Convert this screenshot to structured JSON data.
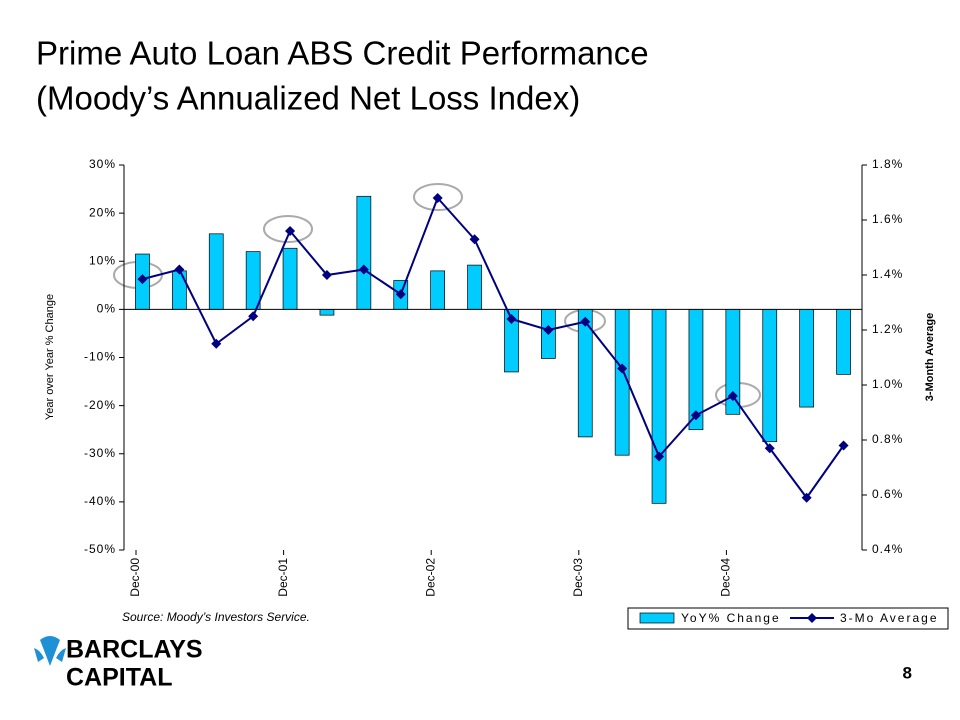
{
  "chart_data": {
    "type": "bar_line",
    "title": "Prime Auto Loan ABS Credit Performance",
    "subtitle": "(Moody’s Annualized Net Loss Index)",
    "y_label": "Year over Year % Change",
    "y2_label": "3-Month Average",
    "source": "Source: Moody’s Investors Service.",
    "categories": [
      "Dec-00",
      null,
      null,
      null,
      "Dec-01",
      null,
      null,
      null,
      "Dec-02",
      null,
      null,
      null,
      "Dec-03",
      null,
      null,
      null,
      "Dec-04",
      null,
      null,
      null
    ],
    "series": [
      {
        "name": "YoY% Change",
        "type": "bar",
        "color": "#00ccff",
        "values": [
          11.5,
          8,
          15.7,
          12,
          12.7,
          -1.2,
          23.5,
          6,
          8,
          9.2,
          -13,
          -10.2,
          -26.5,
          -30.3,
          -40.3,
          -25,
          -21.8,
          -27.5,
          -20.3,
          -13.5
        ]
      },
      {
        "name": "3-Mo Average",
        "type": "line",
        "axis": "y2",
        "color": "#000080",
        "values": [
          1.385,
          1.42,
          1.15,
          1.25,
          1.56,
          1.4,
          1.42,
          1.33,
          1.68,
          1.53,
          1.24,
          1.2,
          1.23,
          1.06,
          0.74,
          0.89,
          0.96,
          0.77,
          0.59,
          0.78
        ]
      }
    ],
    "ylim": [
      -50,
      30
    ],
    "yticks": [
      {
        "value": -50,
        "label": "-50%"
      },
      {
        "value": -40,
        "label": "-40%"
      },
      {
        "value": -30,
        "label": "-30%"
      },
      {
        "value": -20,
        "label": "-20%"
      },
      {
        "value": -10,
        "label": "-10%"
      },
      {
        "value": 0,
        "label": "0%"
      },
      {
        "value": 10,
        "label": "10%"
      },
      {
        "value": 20,
        "label": "20%"
      },
      {
        "value": 30,
        "label": "30%"
      }
    ],
    "y2lim": [
      0.4,
      1.8
    ],
    "y2ticks": [
      {
        "value": 0.4,
        "label": "0.4%"
      },
      {
        "value": 0.6,
        "label": "0.6%"
      },
      {
        "value": 0.8,
        "label": "0.8%"
      },
      {
        "value": 1.0,
        "label": "1.0%"
      },
      {
        "value": 1.2,
        "label": "1.2%"
      },
      {
        "value": 1.4,
        "label": "1.4%"
      },
      {
        "value": 1.6,
        "label": "1.6%"
      },
      {
        "value": 1.8,
        "label": "1.8%"
      }
    ],
    "grid": false
  },
  "logo": [
    "BARCLAYS",
    "CAPITAL"
  ],
  "page_number": "8"
}
